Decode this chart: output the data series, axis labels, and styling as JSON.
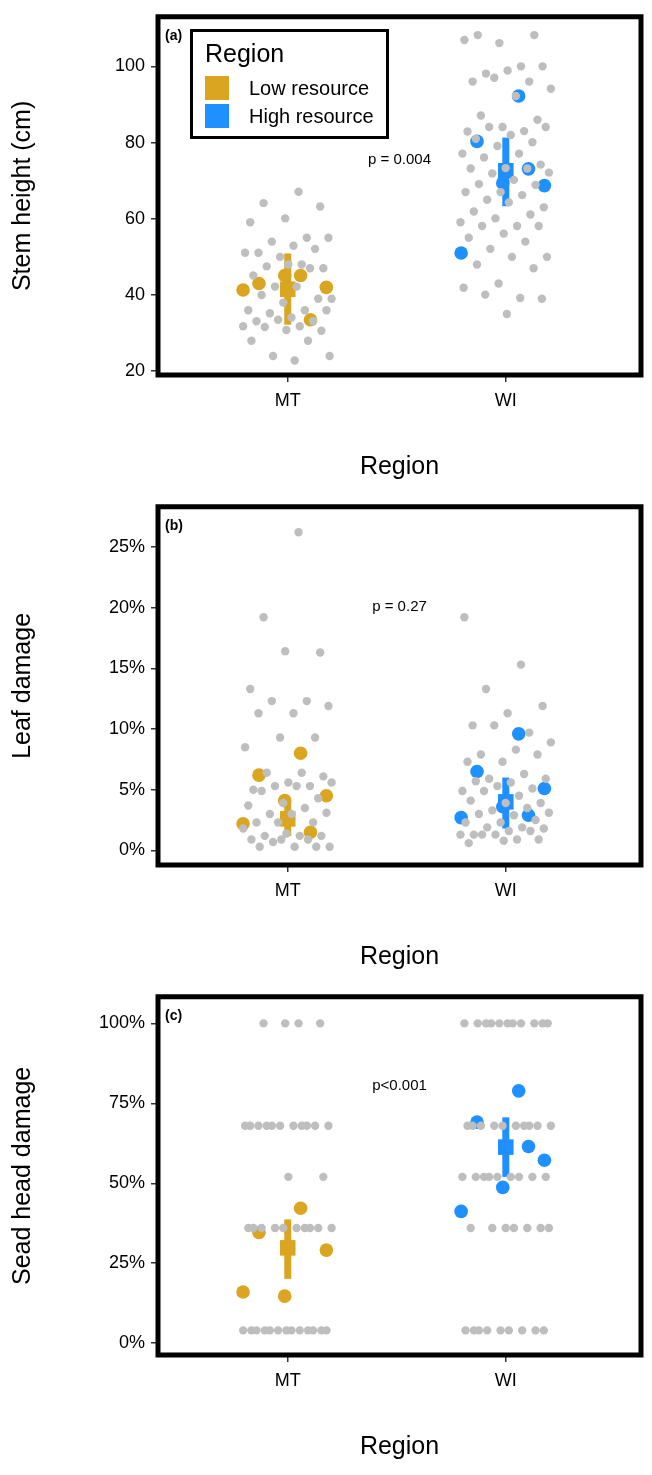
{
  "chart_data": [
    {
      "type": "scatter",
      "xlabel": "Region",
      "ylabel": "Stem height (cm)",
      "annotations": [
        "(a)",
        "p = 0.004"
      ],
      "categories": [
        "MT",
        "WI"
      ],
      "ylim": [
        19,
        113
      ],
      "yticks": [
        20,
        40,
        60,
        80,
        100
      ],
      "grid": false,
      "legend": "top left",
      "legend_title": "Region",
      "series": [
        {
          "color": "#bebebe",
          "marker": "circle",
          "x": [
            "MT",
            "MT",
            "MT",
            "MT",
            "MT",
            "MT",
            "MT",
            "MT",
            "MT",
            "MT",
            "MT",
            "MT",
            "MT",
            "MT",
            "MT",
            "MT",
            "MT",
            "MT",
            "MT",
            "MT",
            "MT",
            "MT",
            "MT",
            "MT",
            "MT",
            "MT",
            "MT",
            "MT",
            "MT",
            "MT",
            "MT",
            "MT",
            "MT",
            "MT",
            "MT",
            "MT",
            "MT",
            "MT",
            "MT",
            "MT",
            "MT",
            "MT",
            "MT",
            "WI",
            "WI",
            "WI",
            "WI",
            "WI",
            "WI",
            "WI",
            "WI",
            "WI",
            "WI",
            "WI",
            "WI",
            "WI",
            "WI",
            "WI",
            "WI",
            "WI",
            "WI",
            "WI",
            "WI",
            "WI",
            "WI",
            "WI",
            "WI",
            "WI",
            "WI",
            "WI",
            "WI",
            "WI",
            "WI",
            "WI",
            "WI",
            "WI",
            "WI",
            "WI",
            "WI",
            "WI",
            "WI",
            "WI",
            "WI",
            "WI",
            "WI",
            "WI",
            "WI",
            "WI",
            "WI",
            "WI",
            "WI",
            "WI",
            "WI",
            "WI",
            "WI",
            "WI",
            "WI",
            "WI",
            "WI",
            "WI",
            "WI",
            "WI",
            "WI",
            "WI",
            "WI",
            "WI"
          ],
          "values": [
            67.1,
            64.1,
            63.2,
            60.1,
            59.1,
            55.0,
            54.0,
            55.0,
            52.9,
            51.1,
            52.1,
            50.0,
            51.1,
            48.0,
            47.5,
            47.0,
            48.0,
            45.1,
            47.0,
            42.2,
            39.0,
            42.2,
            40.0,
            39.0,
            38.0,
            36.0,
            36.0,
            35.2,
            36.0,
            34.1,
            33.1,
            33.1,
            33.5,
            31.8,
            31.8,
            31.6,
            30.6,
            30.8,
            28.0,
            28.0,
            24.0,
            24.0,
            22.8,
            108.2,
            108.2,
            106.1,
            106.9,
            100,
            98.1,
            100,
            98.9,
            96,
            96,
            97,
            94.1,
            92.2,
            87.1,
            86,
            84.1,
            82.9,
            83,
            84.1,
            84.1,
            82,
            81,
            80.1,
            79.1,
            77.1,
            77.1,
            76.1,
            74.2,
            73.3,
            73.2,
            73.2,
            71.9,
            72.1,
            70.2,
            69.1,
            68.9,
            67,
            67,
            66.2,
            65,
            63,
            64.3,
            61.9,
            61.1,
            60.1,
            59.1,
            58.1,
            58.1,
            58.1,
            56.1,
            55,
            54,
            52.1,
            50,
            50,
            48,
            47,
            43,
            41.9,
            39.2,
            40.1,
            39,
            35
          ]
        },
        {
          "name": "Low resource",
          "color": "#daa520",
          "marker": "circle",
          "x": [
            "MT",
            "MT",
            "MT",
            "MT",
            "MT",
            "MT"
          ],
          "values": [
            45.1,
            43.0,
            42.0,
            45.1,
            41.3,
            33.5
          ]
        },
        {
          "name": "High resource",
          "color": "#1e90ff",
          "marker": "circle",
          "x": [
            "WI",
            "WI",
            "WI",
            "WI",
            "WI",
            "WI"
          ],
          "values": [
            92.2,
            80.3,
            68.7,
            69.4,
            51.0,
            73.1
          ]
        },
        {
          "color": "#daa520",
          "marker": "square",
          "x": [
            "MT"
          ],
          "values": [
            41.5
          ],
          "errors": [
            [
              32.2,
              50.9
            ]
          ]
        },
        {
          "color": "#1e90ff",
          "marker": "square",
          "x": [
            "WI"
          ],
          "values": [
            72.6
          ],
          "errors": [
            [
              63.3,
              81.3
            ]
          ]
        }
      ]
    },
    {
      "type": "scatter",
      "xlabel": "Region",
      "ylabel": "Leaf damage",
      "annotations": [
        "(b)",
        "p = 0.27"
      ],
      "categories": [
        "MT",
        "WI"
      ],
      "ylim": [
        -1.2,
        28.3
      ],
      "yticks": [
        {
          "value": 0,
          "label": "0%"
        },
        {
          "value": 5,
          "label": "5%"
        },
        {
          "value": 10,
          "label": "10%"
        },
        {
          "value": 15,
          "label": "15%"
        },
        {
          "value": 20,
          "label": "20%"
        },
        {
          "value": 25,
          "label": "25%"
        }
      ],
      "grid": false,
      "series": [
        {
          "color": "#bebebe",
          "marker": "circle",
          "x": [
            "MT",
            "MT",
            "MT",
            "MT",
            "MT",
            "MT",
            "MT",
            "MT",
            "MT",
            "MT",
            "MT",
            "MT",
            "MT",
            "MT",
            "MT",
            "MT",
            "MT",
            "MT",
            "MT",
            "MT",
            "MT",
            "MT",
            "MT",
            "MT",
            "MT",
            "MT",
            "MT",
            "MT",
            "MT",
            "MT",
            "MT",
            "MT",
            "MT",
            "MT",
            "MT",
            "MT",
            "MT",
            "MT",
            "MT",
            "MT",
            "MT",
            "MT",
            "MT",
            "MT",
            "MT",
            "MT",
            "WI",
            "WI",
            "WI",
            "WI",
            "WI",
            "WI",
            "WI",
            "WI",
            "WI",
            "WI",
            "WI",
            "WI",
            "WI",
            "WI",
            "WI",
            "WI",
            "WI",
            "WI",
            "WI",
            "WI",
            "WI",
            "WI",
            "WI",
            "WI",
            "WI",
            "WI",
            "WI",
            "WI",
            "WI",
            "WI",
            "WI",
            "WI",
            "WI",
            "WI",
            "WI",
            "WI",
            "WI",
            "WI",
            "WI",
            "WI",
            "WI",
            "WI",
            "WI",
            "WI",
            "WI",
            "WI",
            "WI",
            "WI"
          ],
          "values": [
            26.2,
            19.2,
            16.3,
            16.4,
            13.3,
            12.3,
            12.3,
            11.9,
            11.3,
            11.3,
            9.3,
            9.3,
            8.5,
            6.4,
            6.4,
            6.1,
            5.6,
            5.0,
            5.3,
            5.3,
            5.6,
            5.3,
            4.9,
            4.3,
            3.9,
            3.7,
            3.5,
            3.0,
            3.1,
            3.0,
            2.3,
            2.3,
            2.3,
            1.8,
            1.2,
            1.2,
            1.2,
            1.4,
            0.9,
            0.9,
            0.7,
            0.3,
            0.3,
            0.3,
            0.3,
            0.9,
            19.2,
            15.3,
            13.3,
            11.9,
            11.3,
            10.3,
            9.7,
            10.3,
            8.9,
            8.3,
            7.9,
            7.9,
            7.3,
            7.3,
            6.3,
            5.9,
            5.9,
            5.6,
            5.7,
            5.1,
            5.3,
            4.9,
            4.5,
            4.9,
            3.9,
            3.9,
            4.1,
            3.5,
            3.3,
            3.1,
            2.9,
            3.0,
            2.5,
            2.3,
            2.3,
            1.9,
            1.9,
            1.8,
            1.6,
            1.3,
            1.6,
            1.3,
            1.3,
            0.9,
            1.3,
            0.9,
            0.8,
            0.6
          ]
        },
        {
          "color": "#daa520",
          "marker": "circle",
          "x": [
            "MT",
            "MT",
            "MT",
            "MT",
            "MT",
            "MT"
          ],
          "values": [
            8.0,
            6.2,
            4.5,
            4.1,
            2.2,
            1.5
          ]
        },
        {
          "color": "#1e90ff",
          "marker": "circle",
          "x": [
            "WI",
            "WI",
            "WI",
            "WI",
            "WI",
            "WI"
          ],
          "values": [
            9.6,
            6.5,
            5.1,
            3.6,
            2.7,
            2.9
          ]
        },
        {
          "color": "#daa520",
          "marker": "square",
          "x": [
            "MT"
          ],
          "values": [
            2.6
          ],
          "errors": [
            [
              1.2,
              4.0
            ]
          ]
        },
        {
          "color": "#1e90ff",
          "marker": "square",
          "x": [
            "WI"
          ],
          "values": [
            4.0
          ],
          "errors": [
            [
              1.8,
              6.0
            ]
          ]
        }
      ]
    },
    {
      "type": "scatter",
      "xlabel": "Region",
      "ylabel": "Sead head damage",
      "annotations": [
        "(c)",
        "p<0.001"
      ],
      "categories": [
        "MT",
        "WI"
      ],
      "ylim": [
        -3.7,
        108.3
      ],
      "yticks": [
        {
          "value": 0,
          "label": "0%"
        },
        {
          "value": 25,
          "label": "25%"
        },
        {
          "value": 50,
          "label": "50%"
        },
        {
          "value": 75,
          "label": "75%"
        },
        {
          "value": 100,
          "label": "100%"
        }
      ],
      "grid": false,
      "series": [
        {
          "color": "#bebebe",
          "marker": "circle",
          "x": [
            "MT",
            "MT",
            "MT",
            "MT",
            "MT",
            "MT",
            "MT",
            "MT",
            "MT",
            "MT",
            "MT",
            "MT",
            "MT",
            "MT",
            "MT",
            "MT",
            "MT",
            "MT",
            "MT",
            "MT",
            "MT",
            "MT",
            "MT",
            "MT",
            "MT",
            "MT",
            "MT",
            "MT",
            "MT",
            "MT",
            "MT",
            "MT",
            "MT",
            "MT",
            "MT",
            "MT",
            "MT",
            "MT",
            "MT",
            "MT",
            "WI",
            "WI",
            "WI",
            "WI",
            "WI",
            "WI",
            "WI",
            "WI",
            "WI",
            "WI",
            "WI",
            "WI",
            "WI",
            "WI",
            "WI",
            "WI",
            "WI",
            "WI",
            "WI",
            "WI",
            "WI",
            "WI",
            "WI",
            "WI",
            "WI",
            "WI",
            "WI",
            "WI",
            "WI",
            "WI",
            "WI",
            "WI",
            "WI",
            "WI",
            "WI",
            "WI",
            "WI",
            "WI",
            "WI",
            "WI",
            "WI",
            "WI",
            "WI",
            "WI",
            "WI",
            "WI"
          ],
          "values": [
            100,
            100,
            100,
            100,
            68,
            68,
            68,
            68,
            68,
            68,
            68,
            68,
            68,
            68,
            68,
            52,
            52,
            36,
            36,
            36,
            36,
            36,
            36,
            36,
            36,
            36,
            36,
            4,
            4,
            4,
            4,
            4,
            4,
            4,
            4,
            4,
            4,
            4,
            4,
            4,
            100,
            100,
            100,
            100,
            100,
            100,
            100,
            100,
            100,
            100,
            100,
            68,
            68,
            68,
            68,
            68,
            68,
            68,
            68,
            68,
            68,
            52,
            52,
            52,
            52,
            52,
            52,
            52,
            52,
            52,
            36,
            36,
            36,
            36,
            36,
            36,
            36,
            4,
            4,
            4,
            4,
            4,
            4,
            4,
            4,
            4
          ]
        },
        {
          "color": "#daa520",
          "marker": "circle",
          "x": [
            "MT",
            "MT",
            "MT",
            "MT",
            "MT"
          ],
          "values": [
            42.2,
            34.6,
            29.1,
            14.7,
            16.0
          ]
        },
        {
          "color": "#1e90ff",
          "marker": "circle",
          "x": [
            "WI",
            "WI",
            "WI",
            "WI",
            "WI",
            "WI"
          ],
          "values": [
            78.9,
            69.1,
            57.2,
            48.7,
            41.2,
            61.5
          ]
        },
        {
          "color": "#daa520",
          "marker": "square",
          "x": [
            "MT"
          ],
          "values": [
            29.8
          ],
          "errors": [
            [
              20.1,
              38.7
            ]
          ]
        },
        {
          "color": "#1e90ff",
          "marker": "square",
          "x": [
            "WI"
          ],
          "values": [
            61.3
          ],
          "errors": [
            [
              52.0,
              70.6
            ]
          ]
        }
      ]
    }
  ]
}
